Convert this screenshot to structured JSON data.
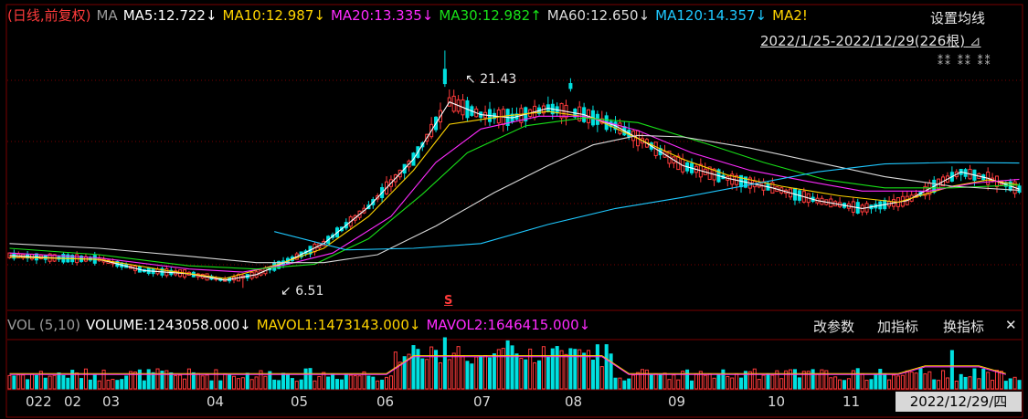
{
  "header": {
    "mode_label": "(日线,前复权)",
    "ma_label": "MA",
    "ma_items": [
      {
        "text": "MA5:12.722↓",
        "color": "#ffffff"
      },
      {
        "text": "MA10:12.987↓",
        "color": "#ffd400"
      },
      {
        "text": "MA20:13.335↓",
        "color": "#ff2bff"
      },
      {
        "text": "MA30:12.982↑",
        "color": "#18e018"
      },
      {
        "text": "MA60:12.650↓",
        "color": "#d9d9d9"
      },
      {
        "text": "MA120:14.357↓",
        "color": "#1ec8ff"
      },
      {
        "text": "MA2!",
        "color": "#ffd400"
      }
    ],
    "set_ma_button": "设置均线",
    "range_text": "2022/1/25-2022/12/29(226根)"
  },
  "annotations": {
    "high_label": "21.43",
    "low_label": "6.51",
    "dividend_mark": "S"
  },
  "volume_header": {
    "label": "VOL (5,10)",
    "volume": "VOLUME:1243058.000↓",
    "mavol1": "MAVOL1:1473143.000↓",
    "mavol2": "MAVOL2:1646415.000↓",
    "buttons": [
      "改参数",
      "加指标",
      "换指标"
    ],
    "close_symbol": "✕"
  },
  "x_axis": {
    "ticks": [
      "022",
      "02",
      "03",
      "04",
      "05",
      "06",
      "07",
      "08",
      "09",
      "10",
      "11"
    ],
    "cursor_date": "2022/12/29/四"
  },
  "colors": {
    "up": "#ff3b3b",
    "down": "#00e0e0",
    "ma5": "#ffffff",
    "ma10": "#ffd400",
    "ma20": "#ff2bff",
    "ma30": "#18e018",
    "ma60": "#d9d9d9",
    "ma120": "#1ec8ff",
    "grid": "#7a0000"
  },
  "chart_data": {
    "type": "line",
    "title": "",
    "series": [
      {
        "name": "MA5",
        "points": [
          [
            0,
            8.55
          ],
          [
            10,
            8.4
          ],
          [
            20,
            8.3
          ],
          [
            30,
            7.6
          ],
          [
            40,
            7.4
          ],
          [
            48,
            7.0
          ],
          [
            55,
            7.35
          ],
          [
            62,
            8.2
          ],
          [
            70,
            9.3
          ],
          [
            80,
            11.6
          ],
          [
            90,
            14.6
          ],
          [
            98,
            18.2
          ],
          [
            105,
            17.4
          ],
          [
            112,
            17.2
          ],
          [
            120,
            17.8
          ],
          [
            128,
            17.4
          ],
          [
            135,
            16.7
          ],
          [
            142,
            15.6
          ],
          [
            150,
            14.2
          ],
          [
            160,
            13.4
          ],
          [
            170,
            12.8
          ],
          [
            180,
            12.0
          ],
          [
            190,
            11.5
          ],
          [
            200,
            12.0
          ],
          [
            212,
            13.8
          ],
          [
            218,
            13.4
          ],
          [
            225,
            12.72
          ]
        ]
      },
      {
        "name": "MA10",
        "points": [
          [
            0,
            8.45
          ],
          [
            20,
            8.3
          ],
          [
            35,
            7.6
          ],
          [
            48,
            7.1
          ],
          [
            60,
            8.0
          ],
          [
            70,
            9.0
          ],
          [
            80,
            11.0
          ],
          [
            90,
            13.9
          ],
          [
            98,
            16.8
          ],
          [
            110,
            17.3
          ],
          [
            120,
            17.6
          ],
          [
            130,
            17.2
          ],
          [
            140,
            15.9
          ],
          [
            150,
            14.6
          ],
          [
            160,
            13.6
          ],
          [
            172,
            12.9
          ],
          [
            185,
            12.3
          ],
          [
            198,
            11.9
          ],
          [
            210,
            12.9
          ],
          [
            218,
            13.3
          ],
          [
            225,
            12.99
          ]
        ]
      },
      {
        "name": "MA20",
        "points": [
          [
            0,
            8.7
          ],
          [
            20,
            8.4
          ],
          [
            40,
            7.7
          ],
          [
            52,
            7.5
          ],
          [
            62,
            8.0
          ],
          [
            72,
            8.7
          ],
          [
            85,
            11.0
          ],
          [
            95,
            14.4
          ],
          [
            105,
            16.5
          ],
          [
            118,
            17.3
          ],
          [
            128,
            17.3
          ],
          [
            140,
            16.4
          ],
          [
            152,
            15.0
          ],
          [
            165,
            13.9
          ],
          [
            178,
            13.2
          ],
          [
            190,
            12.6
          ],
          [
            205,
            12.6
          ],
          [
            215,
            13.1
          ],
          [
            225,
            13.34
          ]
        ]
      },
      {
        "name": "MA30",
        "points": [
          [
            0,
            9.0
          ],
          [
            20,
            8.6
          ],
          [
            40,
            7.9
          ],
          [
            55,
            7.7
          ],
          [
            68,
            8.0
          ],
          [
            80,
            9.6
          ],
          [
            92,
            12.4
          ],
          [
            102,
            15.0
          ],
          [
            115,
            16.7
          ],
          [
            128,
            17.2
          ],
          [
            140,
            16.9
          ],
          [
            155,
            15.6
          ],
          [
            168,
            14.4
          ],
          [
            182,
            13.3
          ],
          [
            195,
            12.8
          ],
          [
            210,
            12.8
          ],
          [
            225,
            12.98
          ]
        ]
      },
      {
        "name": "MA60",
        "points": [
          [
            0,
            9.3
          ],
          [
            20,
            9.0
          ],
          [
            40,
            8.5
          ],
          [
            55,
            8.1
          ],
          [
            70,
            8.1
          ],
          [
            82,
            8.6
          ],
          [
            95,
            10.4
          ],
          [
            108,
            12.5
          ],
          [
            120,
            14.2
          ],
          [
            130,
            15.5
          ],
          [
            140,
            16.1
          ],
          [
            150,
            16.0
          ],
          [
            165,
            15.3
          ],
          [
            180,
            14.4
          ],
          [
            195,
            13.5
          ],
          [
            210,
            12.9
          ],
          [
            225,
            12.65
          ]
        ]
      },
      {
        "name": "MA120",
        "points": [
          [
            59,
            10.05
          ],
          [
            75,
            8.9
          ],
          [
            90,
            9.0
          ],
          [
            105,
            9.3
          ],
          [
            120,
            10.5
          ],
          [
            135,
            11.5
          ],
          [
            150,
            12.2
          ],
          [
            165,
            13.0
          ],
          [
            180,
            13.8
          ],
          [
            195,
            14.3
          ],
          [
            210,
            14.4
          ],
          [
            225,
            14.36
          ]
        ]
      }
    ],
    "extrema": {
      "high": 21.43,
      "low": 6.51
    },
    "volume": {
      "VOLUME": 1243058.0,
      "MAVOL1": 1473143.0,
      "MAVOL2": 1646415.0
    },
    "bars": 226,
    "date_range": [
      "2022/1/25",
      "2022/12/29"
    ]
  }
}
